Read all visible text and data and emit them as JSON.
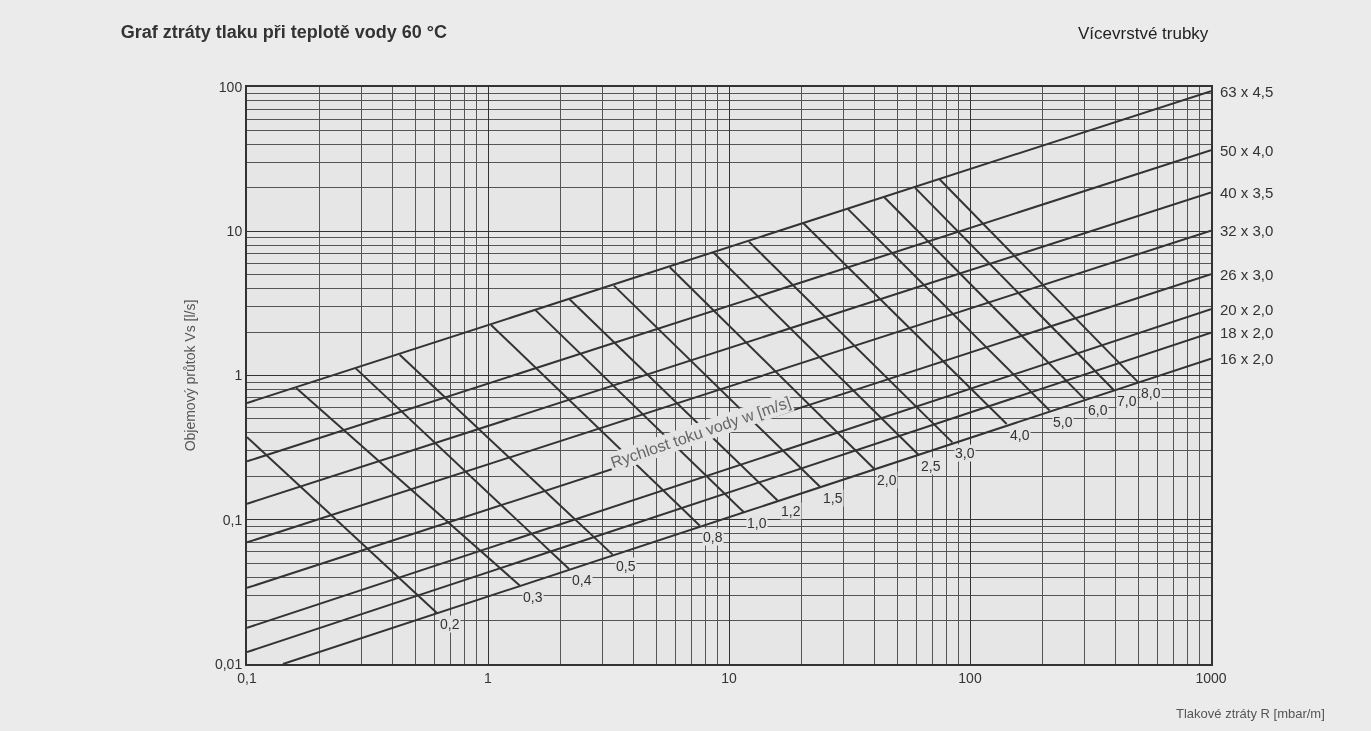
{
  "chart_data": {
    "type": "line",
    "title": "Graf ztráty tlaku při teplotě vody 60 °C",
    "subtitle": "Vícevrstvé trubky",
    "xlabel": "Tlakové ztráty R [mbar/m]",
    "ylabel": "Objemový průtok Vs [l/s]",
    "annotations": [
      "Rychlost toku vody w [m/s]"
    ],
    "log": "xy",
    "grid": true,
    "legend": false,
    "marker": "none",
    "line_style": "solid",
    "xlim": [
      0.1,
      1000
    ],
    "ylim": [
      0.01,
      100
    ],
    "xticks": [
      {
        "value": 0.1,
        "label": "0,1"
      },
      1,
      10,
      100,
      1000
    ],
    "yticks": [
      {
        "value": 0.01,
        "label": "0,01"
      },
      {
        "value": 0.1,
        "label": "0,1"
      },
      1,
      10,
      100
    ],
    "series": [
      {
        "name": "63 x 4,5",
        "color": "#333333",
        "x": [
          0.1,
          1000
        ],
        "values": [
          0.644,
          93.7
        ]
      },
      {
        "name": "50 x 4,0",
        "color": "#333333",
        "x": [
          0.1,
          1000
        ],
        "values": [
          0.254,
          36.5
        ]
      },
      {
        "name": "40 x 3,5",
        "color": "#333333",
        "x": [
          0.1,
          1000
        ],
        "values": [
          0.129,
          18.6
        ]
      },
      {
        "name": "32 x 3,0",
        "color": "#333333",
        "x": [
          0.1,
          1000
        ],
        "values": [
          0.0697,
          10.1
        ]
      },
      {
        "name": "26 x 3,0",
        "color": "#333333",
        "x": [
          0.1,
          1000
        ],
        "values": [
          0.0337,
          5.04
        ]
      },
      {
        "name": "20 x 2,0",
        "color": "#333333",
        "x": [
          0.1,
          1000
        ],
        "values": [
          0.0178,
          2.88
        ]
      },
      {
        "name": "18 x 2,0",
        "color": "#333333",
        "x": [
          0.1,
          1000
        ],
        "values": [
          0.0121,
          1.98
        ]
      },
      {
        "name": "16 x 2,0",
        "color": "#333333",
        "x": [
          0.141,
          1000
        ],
        "values": [
          0.01,
          1.31
        ]
      },
      {
        "name": "0,2",
        "color": "#333333",
        "x": [
          0.1,
          0.614
        ],
        "values": [
          0.374,
          0.0226
        ]
      },
      {
        "name": "0,3",
        "color": "#333333",
        "x": [
          0.16,
          1.354
        ],
        "values": [
          0.818,
          0.035
        ]
      },
      {
        "name": "0,4",
        "color": "#333333",
        "x": [
          0.282,
          2.17
        ],
        "values": [
          1.125,
          0.0456
        ]
      },
      {
        "name": "0,5",
        "color": "#333333",
        "x": [
          0.43,
          3.29
        ],
        "values": [
          1.391,
          0.0573
        ]
      },
      {
        "name": "0,8",
        "color": "#333333",
        "x": [
          1.03,
          7.57
        ],
        "values": [
          2.24,
          0.091
        ]
      },
      {
        "name": "1,0",
        "color": "#333333",
        "x": [
          1.57,
          11.5
        ],
        "values": [
          2.85,
          0.113
        ]
      },
      {
        "name": "1,2",
        "color": "#333333",
        "x": [
          2.18,
          15.9
        ],
        "values": [
          3.38,
          0.136
        ]
      },
      {
        "name": "1,5",
        "color": "#333333",
        "x": [
          3.33,
          23.8
        ],
        "values": [
          4.2,
          0.17
        ]
      },
      {
        "name": "2,0",
        "color": "#333333",
        "x": [
          5.68,
          40.0
        ],
        "values": [
          5.63,
          0.226
        ]
      },
      {
        "name": "2,5",
        "color": "#333333",
        "x": [
          8.6,
          61.1
        ],
        "values": [
          7.15,
          0.282
        ]
      },
      {
        "name": "3,0",
        "color": "#333333",
        "x": [
          12.1,
          84.5
        ],
        "values": [
          8.47,
          0.344
        ]
      },
      {
        "name": "4,0",
        "color": "#333333",
        "x": [
          20.3,
          142
        ],
        "values": [
          11.4,
          0.461
        ]
      },
      {
        "name": "5,0",
        "color": "#333333",
        "x": [
          31.1,
          214
        ],
        "values": [
          14.3,
          0.572
        ]
      },
      {
        "name": "6,0",
        "color": "#333333",
        "x": [
          44.1,
          299
        ],
        "values": [
          17.2,
          0.686
        ]
      },
      {
        "name": "7,0",
        "color": "#333333",
        "x": [
          59.2,
          394
        ],
        "values": [
          20.0,
          0.796
        ]
      },
      {
        "name": "8,0",
        "color": "#333333",
        "x": [
          74.6,
          498
        ],
        "values": [
          23.0,
          0.9
        ]
      }
    ]
  }
}
